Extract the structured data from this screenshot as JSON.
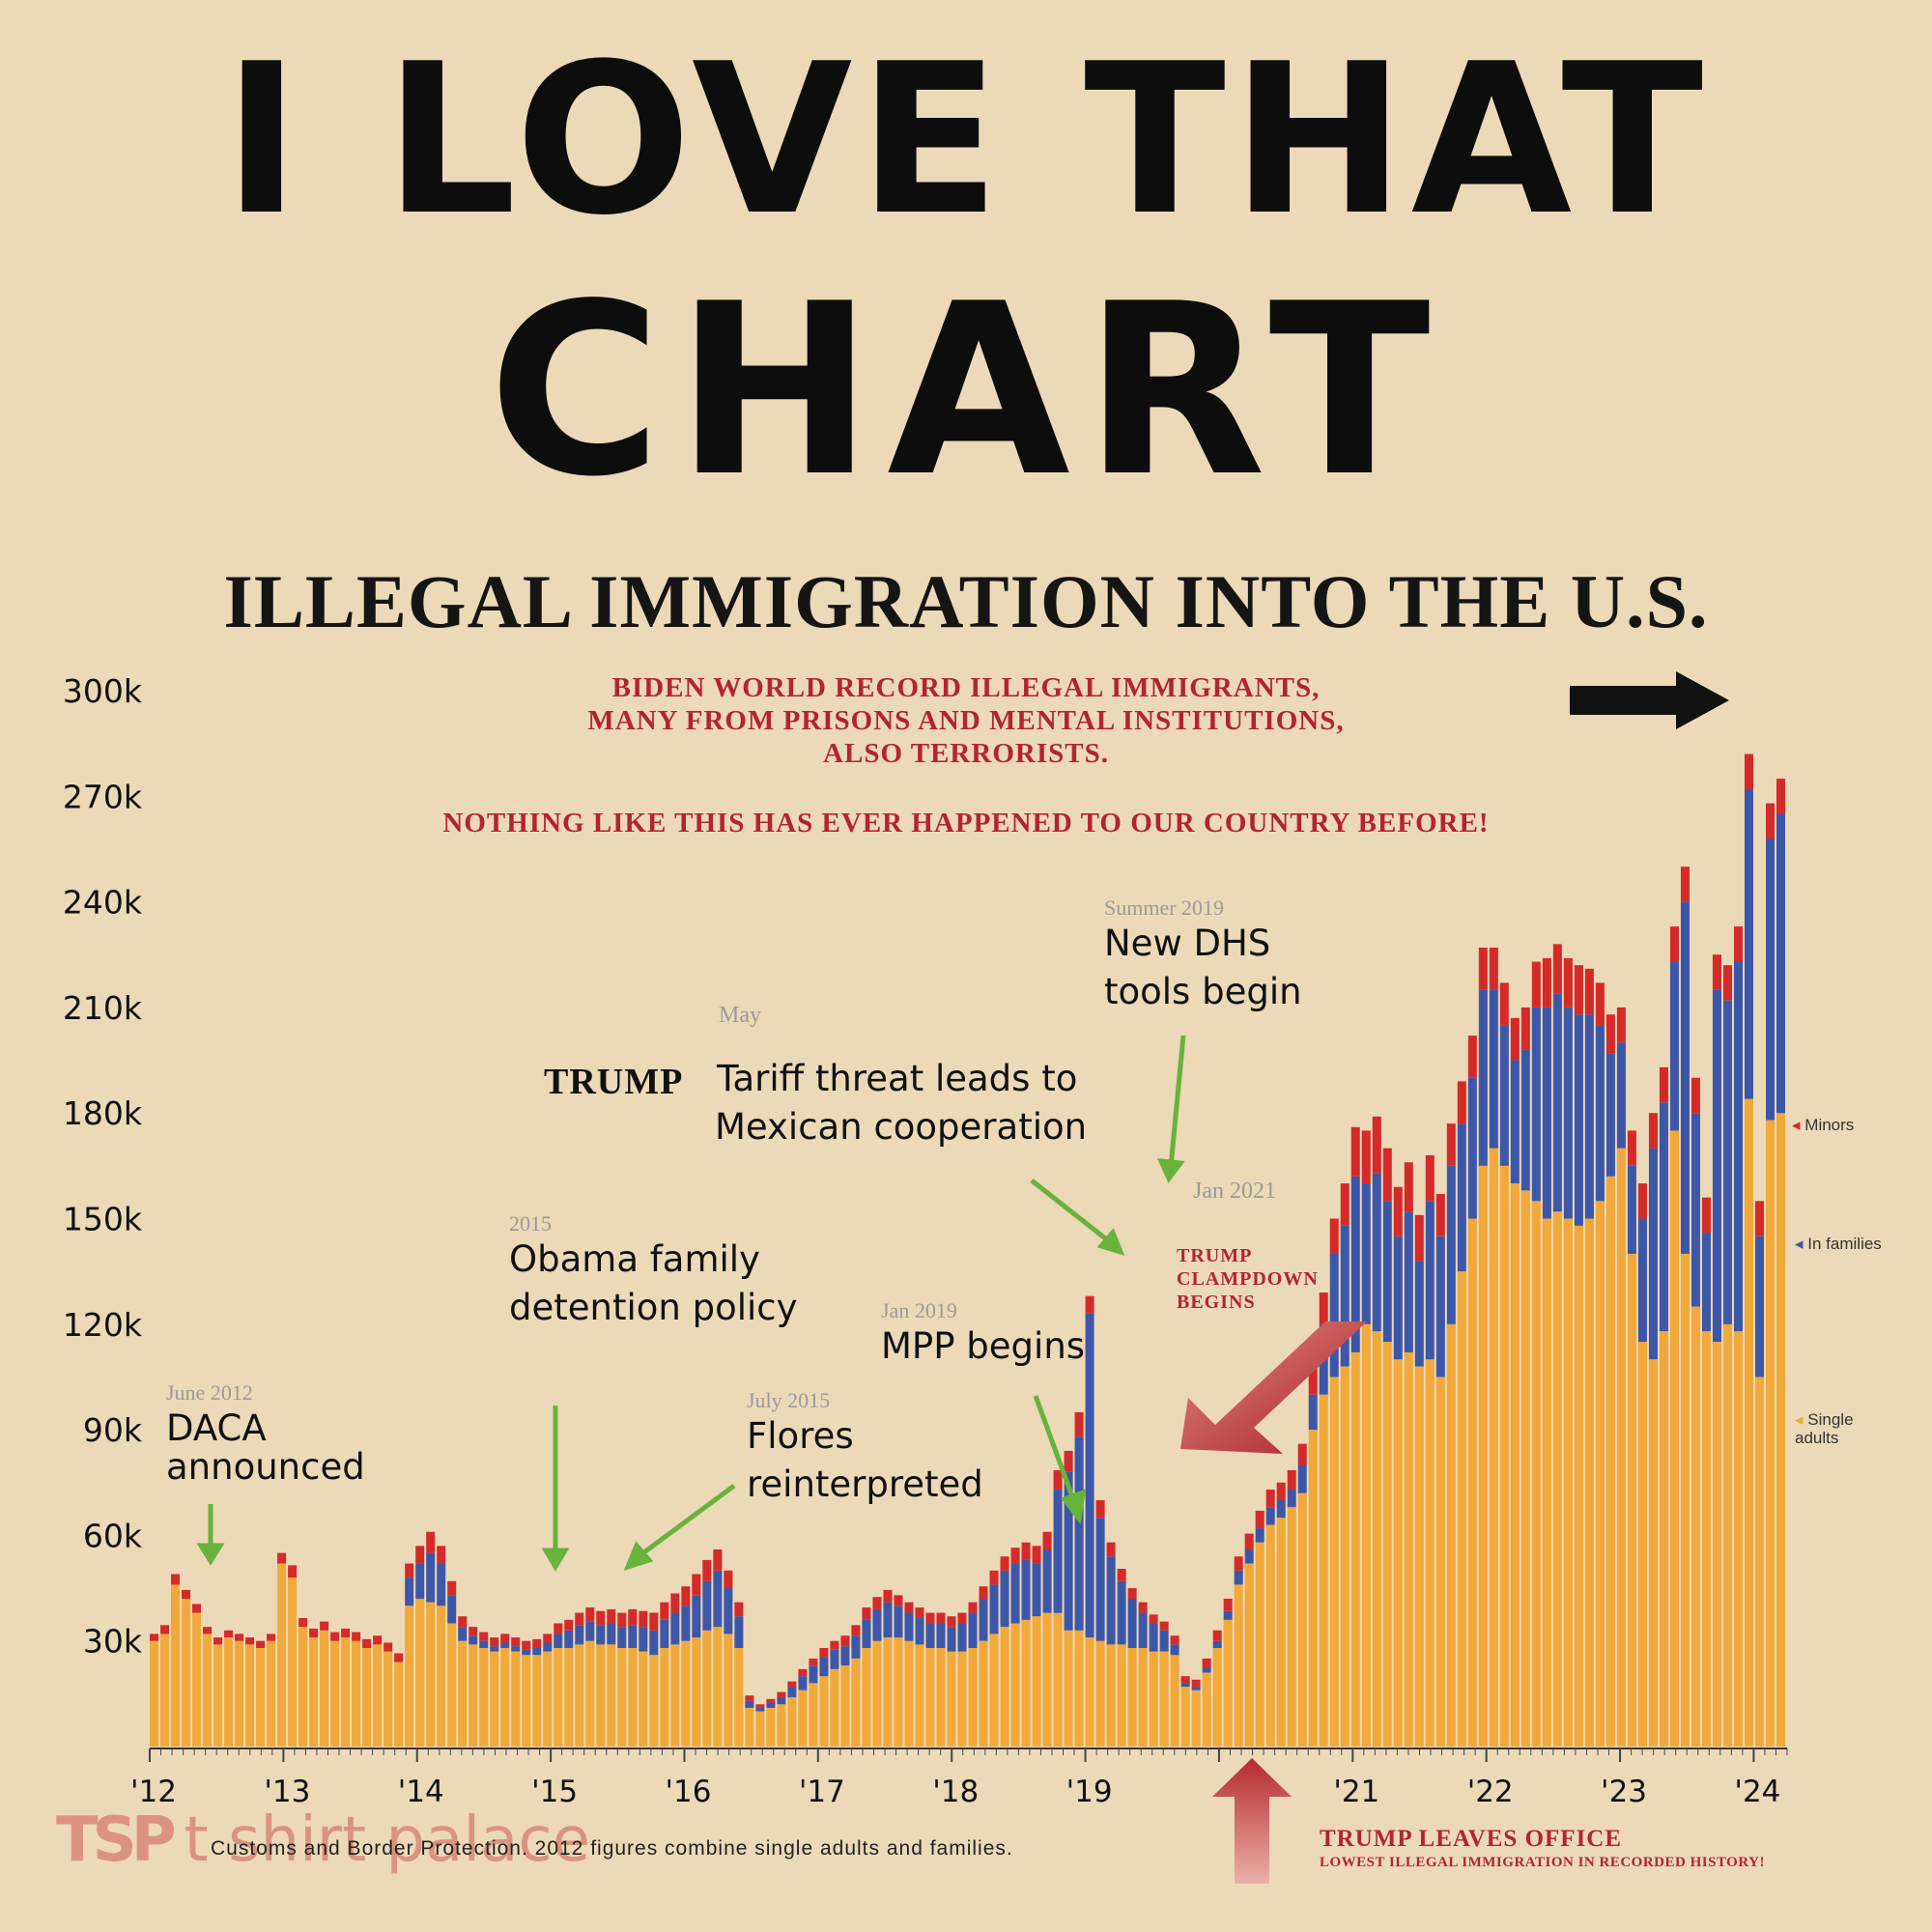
{
  "poster": {
    "headline_line1": "I LOVE THAT",
    "headline_line2": "CHART",
    "brand_logo": "TSP",
    "brand_name": "t shirt palace"
  },
  "chart_data": {
    "type": "bar",
    "stacked": true,
    "title": "ILLEGAL IMMIGRATION INTO THE U.S.",
    "subtitle_lines": [
      "BIDEN WORLD RECORD ILLEGAL IMMIGRANTS,",
      "MANY FROM PRISONS AND MENTAL INSTITUTIONS,",
      "ALSO TERRORISTS."
    ],
    "subtitle2": "NOTHING LIKE THIS HAS EVER HAPPENED TO OUR COUNTRY BEFORE!",
    "ylim": [
      0,
      300000
    ],
    "y_ticks": [
      30000,
      60000,
      90000,
      120000,
      150000,
      180000,
      210000,
      240000,
      270000,
      300000
    ],
    "y_tick_labels": [
      "30k",
      "60k",
      "90k",
      "120k",
      "150k",
      "180k",
      "210k",
      "240k",
      "270k",
      "300k"
    ],
    "x_tick_labels": [
      "'12",
      "'13",
      "'14",
      "'15",
      "'16",
      "'17",
      "'18",
      "'19",
      "'21",
      "'22",
      "'23",
      "'24"
    ],
    "x_tick_years": [
      2012,
      2013,
      2014,
      2015,
      2016,
      2017,
      2018,
      2019,
      2021,
      2022,
      2023,
      2024
    ],
    "xlim": [
      2012,
      2024.25
    ],
    "colors": {
      "single_adults": "#f0a93a",
      "in_families": "#3d57a8",
      "minors": "#d42a2a"
    },
    "series": [
      {
        "name": "Single adults",
        "values": [
          30000,
          32000,
          46000,
          42000,
          38000,
          32000,
          29000,
          31000,
          30000,
          29000,
          28000,
          30000,
          52000,
          48000,
          34000,
          31000,
          33000,
          30000,
          31000,
          30000,
          28000,
          29000,
          27000,
          24000,
          40000,
          42000,
          41000,
          40000,
          35000,
          30000,
          29000,
          28000,
          27000,
          28000,
          27000,
          26000,
          26000,
          27000,
          28000,
          28000,
          29000,
          30000,
          29000,
          29000,
          28000,
          28000,
          27000,
          26000,
          28000,
          29000,
          30000,
          31000,
          33000,
          34000,
          32000,
          28000,
          11000,
          10000,
          11000,
          12000,
          14000,
          16000,
          18000,
          20000,
          22000,
          23000,
          25000,
          28000,
          30000,
          31000,
          31000,
          30000,
          29000,
          28000,
          28000,
          27000,
          27000,
          28000,
          30000,
          32000,
          34000,
          35000,
          36000,
          37000,
          38000,
          38000,
          33000,
          33000,
          31000,
          30000,
          29000,
          29000,
          28000,
          28000,
          27000,
          27000,
          26000,
          17000,
          16000,
          21000,
          28000,
          36000,
          46000,
          52000,
          58000,
          63000,
          65000,
          68000,
          72000,
          90000,
          100000,
          105000,
          108000,
          112000,
          120000,
          118000,
          115000,
          110000,
          112000,
          108000,
          110000,
          105000,
          120000,
          135000,
          150000,
          165000,
          170000,
          165000,
          160000,
          158000,
          155000,
          150000,
          152000,
          150000,
          148000,
          150000,
          155000,
          162000,
          170000,
          140000,
          115000,
          110000,
          118000,
          175000,
          140000,
          125000,
          118000,
          115000,
          120000,
          118000,
          184000,
          105000,
          178000,
          180000
        ]
      },
      {
        "name": "In families",
        "values": [
          0,
          0,
          0,
          0,
          0,
          0,
          0,
          0,
          0,
          0,
          0,
          0,
          0,
          0,
          0,
          0,
          0,
          0,
          0,
          0,
          0,
          0,
          0,
          0,
          8000,
          10000,
          14000,
          12000,
          8000,
          4000,
          2500,
          2000,
          1500,
          1500,
          1500,
          1500,
          2000,
          2500,
          4000,
          5000,
          5500,
          5500,
          5500,
          6000,
          6000,
          6500,
          7000,
          7000,
          8000,
          9000,
          10000,
          12000,
          14000,
          16000,
          13000,
          9000,
          2000,
          1000,
          1500,
          2000,
          3000,
          4000,
          5000,
          5500,
          5500,
          5500,
          6500,
          8000,
          9000,
          10000,
          9000,
          8000,
          7500,
          7000,
          7000,
          7000,
          8000,
          10000,
          12000,
          14000,
          16000,
          17000,
          17000,
          15000,
          18000,
          35000,
          45000,
          55000,
          92000,
          35000,
          25000,
          18000,
          14000,
          10000,
          8000,
          6000,
          3000,
          1000,
          1000,
          1500,
          2000,
          2500,
          4000,
          4000,
          4000,
          5000,
          5000,
          5000,
          8000,
          10000,
          20000,
          35000,
          40000,
          50000,
          40000,
          45000,
          40000,
          35000,
          40000,
          30000,
          45000,
          40000,
          45000,
          42000,
          40000,
          50000,
          45000,
          40000,
          35000,
          40000,
          55000,
          60000,
          62000,
          60000,
          60000,
          58000,
          50000,
          35000,
          30000,
          25000,
          35000,
          60000,
          65000,
          48000,
          100000,
          55000,
          28000,
          100000,
          92000,
          105000,
          88000,
          40000,
          80000,
          85000,
          50000,
          55000,
          60000
        ]
      },
      {
        "name": "Minors",
        "values": [
          2000,
          2500,
          3000,
          2500,
          2500,
          2000,
          2000,
          2000,
          2000,
          2000,
          2000,
          2000,
          3000,
          3500,
          2500,
          2500,
          2500,
          2500,
          2500,
          2500,
          2500,
          2500,
          2500,
          2500,
          4000,
          5000,
          6000,
          5000,
          4000,
          3000,
          2500,
          2500,
          2500,
          2500,
          2500,
          2500,
          2500,
          2500,
          3000,
          3000,
          3500,
          4000,
          4000,
          4000,
          4000,
          4500,
          4500,
          5000,
          5000,
          5500,
          5500,
          6000,
          6000,
          6000,
          5000,
          4000,
          1500,
          1000,
          1000,
          1500,
          1500,
          2000,
          2000,
          2500,
          2500,
          3000,
          3000,
          3500,
          3500,
          3500,
          3000,
          3000,
          3000,
          3000,
          3000,
          3000,
          3000,
          3000,
          3500,
          4000,
          4000,
          4500,
          5000,
          5000,
          5000,
          5500,
          6000,
          7000,
          5000,
          5000,
          4000,
          3500,
          3000,
          3000,
          2500,
          2500,
          2500,
          2000,
          2000,
          2500,
          3000,
          3500,
          4000,
          4500,
          5000,
          5000,
          5000,
          5500,
          6000,
          7500,
          9000,
          10000,
          12000,
          14000,
          15000,
          16000,
          15000,
          14000,
          14000,
          13000,
          13000,
          12000,
          12000,
          12000,
          12000,
          12000,
          12000,
          12000,
          12000,
          12000,
          13000,
          14000,
          14000,
          14000,
          14000,
          13000,
          12000,
          11000,
          10000,
          10000,
          10000,
          10000,
          10000,
          10000,
          10000,
          10000,
          10000,
          10000,
          10000,
          10000,
          10000,
          10000,
          10000,
          10000,
          10000,
          9000
        ]
      }
    ],
    "legend": [
      {
        "label": "Minors",
        "color": "#d42a2a"
      },
      {
        "label": "In families",
        "color": "#3d57a8"
      },
      {
        "label": "Single adults",
        "color": "#f0a93a"
      }
    ],
    "annotations": [
      {
        "id": "daca",
        "date": "June 2012",
        "text_lines": [
          "DACA",
          "announced"
        ]
      },
      {
        "id": "obama",
        "date": "2015",
        "text_lines": [
          "Obama family",
          "detention policy"
        ]
      },
      {
        "id": "flores",
        "date": "July 2015",
        "text_lines": [
          "Flores",
          "reinterpreted"
        ]
      },
      {
        "id": "tariff",
        "date": "May",
        "prefix": "TRUMP",
        "text_lines": [
          "Tariff threat leads to",
          "Mexican cooperation"
        ]
      },
      {
        "id": "dhs",
        "date": "Summer 2019",
        "text_lines": [
          "New DHS",
          "tools begin"
        ]
      },
      {
        "id": "mpp",
        "date": "Jan 2019",
        "text_lines": [
          "MPP begins"
        ]
      },
      {
        "id": "clampdown",
        "date": "Jan 2021",
        "text_lines": [
          "TRUMP",
          "CLAMPDOWN",
          "BEGINS"
        ]
      },
      {
        "id": "leaves",
        "text_lines": [
          "TRUMP LEAVES OFFICE",
          "LOWEST ILLEGAL IMMIGRATION IN RECORDED HISTORY!"
        ]
      }
    ],
    "source": "Customs and Border Protection. 2012 figures combine single adults and families."
  }
}
